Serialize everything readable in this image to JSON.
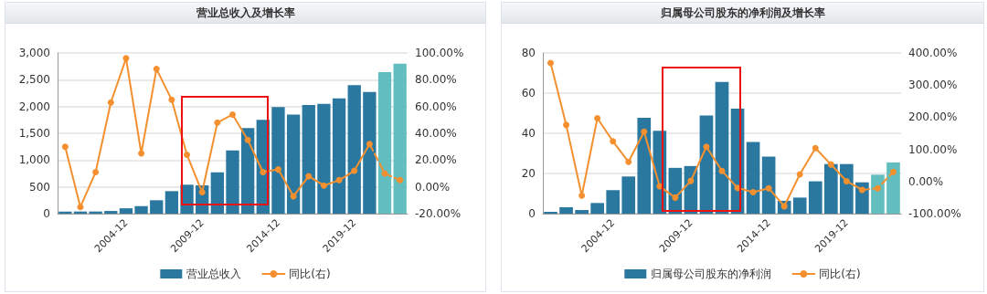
{
  "chart_data": [
    {
      "type": "bar",
      "title": "营业总收入及增长率",
      "categories": [
        null,
        null,
        null,
        null,
        "2004-12",
        null,
        null,
        null,
        null,
        "2009-12",
        null,
        null,
        null,
        null,
        "2014-12",
        null,
        null,
        null,
        null,
        "2019-12",
        null,
        null,
        null
      ],
      "series": [
        {
          "name": "营业总收入",
          "colors": [
            "#2a78a0",
            "#2a78a0",
            "#2a78a0",
            "#2a78a0",
            "#2a78a0",
            "#2a78a0",
            "#2a78a0",
            "#2a78a0",
            "#2a78a0",
            "#2a78a0",
            "#2a78a0",
            "#2a78a0",
            "#2a78a0",
            "#2a78a0",
            "#2a78a0",
            "#2a78a0",
            "#2a78a0",
            "#2a78a0",
            "#2a78a0",
            "#2a78a0",
            "#2a78a0",
            "#63bfbf",
            "#63bfbf"
          ],
          "values": [
            40,
            40,
            40,
            50,
            100,
            140,
            250,
            420,
            540,
            530,
            770,
            1180,
            1600,
            1750,
            1990,
            1850,
            2030,
            2050,
            2150,
            2400,
            2270,
            2640,
            2800
          ]
        },
        {
          "name": "同比(右)",
          "type": "line",
          "axis": "y2",
          "color": "#f4902f",
          "line_style": "solid",
          "values": [
            30,
            -15,
            11,
            63,
            96,
            25,
            88,
            65,
            24,
            -4,
            48,
            54,
            35,
            11,
            13,
            -7,
            8,
            1,
            5,
            12,
            32,
            null,
            null
          ]
        },
        {
          "type": "line",
          "axis": "y2",
          "color": "#f4902f",
          "line_style": "dashed",
          "values": [
            null,
            null,
            null,
            null,
            null,
            null,
            null,
            null,
            null,
            null,
            null,
            null,
            null,
            null,
            null,
            null,
            null,
            null,
            null,
            null,
            32,
            10,
            5
          ]
        }
      ],
      "ylim": [
        0,
        3000
      ],
      "yticks": [
        0,
        500,
        {
          "value": 1000,
          "label": "1,000"
        },
        {
          "value": 1500,
          "label": "1,500"
        },
        {
          "value": 2000,
          "label": "2,000"
        },
        {
          "value": 2500,
          "label": "2,500"
        },
        {
          "value": 3000,
          "label": "3,000"
        }
      ],
      "y2lim": [
        -20,
        100
      ],
      "y2ticks": [
        {
          "value": -20,
          "label": "-20.00%"
        },
        {
          "value": 0,
          "label": "0.00%"
        },
        {
          "value": 20,
          "label": "20.00%"
        },
        {
          "value": 40,
          "label": "40.00%"
        },
        {
          "value": 60,
          "label": "60.00%"
        },
        {
          "value": 80,
          "label": "80.00%"
        },
        {
          "value": 100,
          "label": "100.00%"
        }
      ],
      "grid": "y",
      "legend": "bottom",
      "marker": "circle"
    },
    {
      "type": "bar",
      "title": "归属母公司股东的净利润及增长率",
      "categories": [
        null,
        null,
        null,
        null,
        "2004-12",
        null,
        null,
        null,
        null,
        "2009-12",
        null,
        null,
        null,
        null,
        "2014-12",
        null,
        null,
        null,
        null,
        "2019-12",
        null,
        null,
        null
      ],
      "series": [
        {
          "name": "归属母公司股东的净利润",
          "colors": [
            "#2a78a0",
            "#2a78a0",
            "#2a78a0",
            "#2a78a0",
            "#2a78a0",
            "#2a78a0",
            "#2a78a0",
            "#2a78a0",
            "#2a78a0",
            "#2a78a0",
            "#2a78a0",
            "#2a78a0",
            "#2a78a0",
            "#2a78a0",
            "#2a78a0",
            "#2a78a0",
            "#2a78a0",
            "#2a78a0",
            "#2a78a0",
            "#2a78a0",
            "#2a78a0",
            "#63bfbf",
            "#63bfbf"
          ],
          "values": [
            0.9,
            3.2,
            1.8,
            5.3,
            11.7,
            18.5,
            47.7,
            41.3,
            22.8,
            23.7,
            48.9,
            65.6,
            52.3,
            35.7,
            28.4,
            6.4,
            8,
            16.1,
            24.7,
            24.7,
            15.6,
            19.4,
            25.5
          ]
        },
        {
          "name": "同比(右)",
          "type": "line",
          "axis": "y2",
          "color": "#f4902f",
          "line_style": "solid",
          "values": [
            369,
            176,
            -44,
            197,
            125,
            61,
            155,
            -15,
            -50,
            2,
            108,
            33,
            -20,
            -33,
            -21,
            -77,
            22,
            104,
            53,
            1,
            -26,
            null,
            null
          ]
        },
        {
          "type": "line",
          "axis": "y2",
          "color": "#f4902f",
          "line_style": "dashed",
          "values": [
            null,
            null,
            null,
            null,
            null,
            null,
            null,
            null,
            null,
            null,
            null,
            null,
            null,
            null,
            null,
            null,
            null,
            null,
            null,
            null,
            -26,
            -21,
            30
          ]
        }
      ],
      "ylim": [
        0,
        80
      ],
      "yticks": [
        0,
        20,
        40,
        60,
        80
      ],
      "y2lim": [
        -100,
        400
      ],
      "y2ticks": [
        {
          "value": -100,
          "label": "-100.00%"
        },
        {
          "value": 0,
          "label": "0.00%"
        },
        {
          "value": 100,
          "label": "100.00%"
        },
        {
          "value": 200,
          "label": "200.00%"
        },
        {
          "value": 300,
          "label": "300.00%"
        },
        {
          "value": 400,
          "label": "400.00%"
        }
      ],
      "grid": "y",
      "legend": "bottom",
      "marker": "circle"
    }
  ]
}
